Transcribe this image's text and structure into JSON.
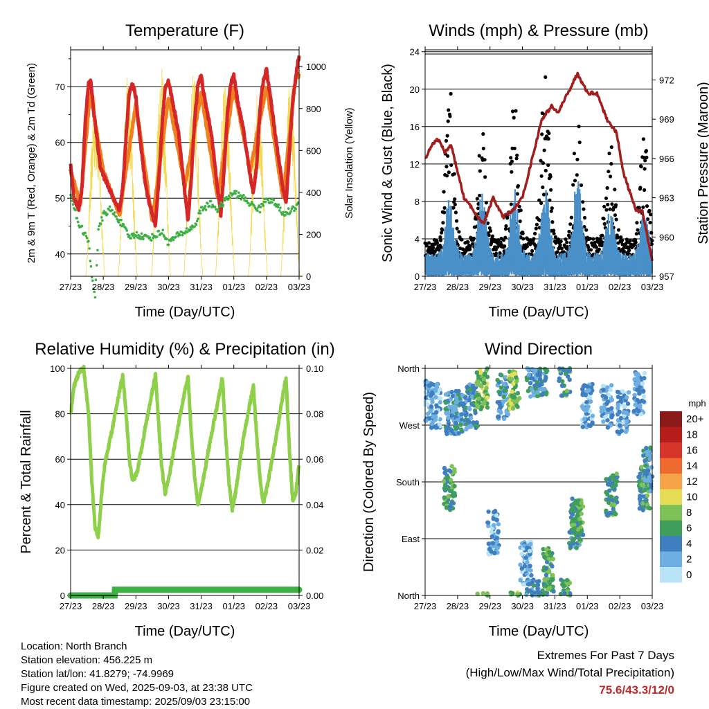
{
  "x_ticks": [
    "27/23",
    "28/23",
    "29/23",
    "30/23",
    "31/23",
    "01/23",
    "02/23",
    "03/23"
  ],
  "time_xlabel": "Time (Day/UTC)",
  "colors": {
    "temp2m": "#d62728",
    "temp9m": "#f07f1e",
    "dew": "#3cb043",
    "solar": "#f2d640",
    "gust": "#000000",
    "wind": "#4a90c8",
    "pressure": "#a01e1e",
    "rh": "#8ed04a",
    "precip": "#3cb043"
  },
  "info": {
    "location": "Location: North Branch",
    "elevation": "Station elevation: 456.225 m",
    "latlon": "Station lat/lon: 41.8279; -74.9969",
    "created": "Figure created on Wed, 2025-09-03, at 23:38 UTC",
    "recent": "Most recent data timestamp: 2025/09/03 23:15:00"
  },
  "extremes": {
    "line1": "Extremes For Past 7 Days",
    "line2": "(High/Low/Max Wind/Total Precipitation)",
    "values": "75.6/43.3/12/0"
  },
  "chart_data": [
    {
      "type": "line",
      "title": "Temperature (F)",
      "xlabel": "Time (Day/UTC)",
      "ylabel": "2m & 9m T (Red, Orange) & 2m Td (Green)",
      "y2label": "Solar Insolation (Yellow)",
      "x_unit": "days since 27/23",
      "ylim": [
        36,
        76.6
      ],
      "y_ticks": [
        40,
        50,
        60,
        70
      ],
      "y2lim": [
        0,
        1080
      ],
      "y2_ticks": [
        0,
        200,
        400,
        600,
        800,
        1000
      ],
      "series": [
        {
          "name": "2m T",
          "axis": "left",
          "x": [
            0,
            0.1,
            0.25,
            0.35,
            0.45,
            0.55,
            0.62,
            0.7,
            0.8,
            0.9,
            1.0,
            1.1,
            1.3,
            1.5,
            1.6,
            1.7,
            1.8,
            1.9,
            2.0,
            2.1,
            2.3,
            2.5,
            2.6,
            2.7,
            2.8,
            2.9,
            3.0,
            3.1,
            3.3,
            3.5,
            3.6,
            3.7,
            3.8,
            3.9,
            4.0,
            4.1,
            4.3,
            4.5,
            4.6,
            4.7,
            4.8,
            4.9,
            5.0,
            5.1,
            5.3,
            5.5,
            5.6,
            5.7,
            5.8,
            5.9,
            6.0,
            6.1,
            6.3,
            6.5,
            6.6,
            6.7,
            6.8,
            6.9,
            7.0
          ],
          "values": [
            56,
            50,
            48,
            52,
            64,
            70.5,
            71,
            66,
            61,
            56,
            54,
            53,
            50,
            48,
            52,
            61,
            69,
            70.5,
            68,
            62,
            52,
            47,
            45,
            53,
            63,
            70,
            71,
            68,
            62,
            51,
            46,
            54,
            64,
            70.5,
            72,
            68,
            62,
            52,
            47,
            55,
            65,
            70.5,
            72,
            68,
            62,
            54,
            51,
            56,
            66,
            71,
            73,
            69,
            60,
            52,
            49,
            58,
            67,
            72,
            75.6
          ]
        },
        {
          "name": "9m T",
          "axis": "left",
          "x": [
            0,
            0.3,
            0.6,
            1.0,
            1.5,
            2.0,
            2.5,
            3.0,
            3.5,
            4.0,
            4.5,
            5.0,
            5.5,
            6.0,
            6.5,
            6.9
          ],
          "values": [
            55,
            49,
            69,
            55,
            47,
            67,
            46,
            68,
            52,
            69,
            50,
            70,
            55,
            70,
            50,
            72
          ]
        },
        {
          "name": "2m Td",
          "axis": "left",
          "x": [
            0,
            0.2,
            0.4,
            0.55,
            0.65,
            0.75,
            0.85,
            1.0,
            1.2,
            1.5,
            1.8,
            2.0,
            2.3,
            2.5,
            2.8,
            3.0,
            3.2,
            3.5,
            3.8,
            4.0,
            4.3,
            4.5,
            4.8,
            5.0,
            5.3,
            5.5,
            5.8,
            6.0,
            6.3,
            6.5,
            6.8,
            7.0
          ],
          "values": [
            51,
            46,
            44,
            42,
            36,
            32.5,
            44,
            47,
            48,
            46,
            43,
            43.5,
            43,
            43,
            44,
            42,
            43,
            44,
            45,
            48,
            49,
            48,
            50,
            51,
            50,
            49,
            48,
            50,
            49,
            47,
            48,
            49
          ]
        },
        {
          "name": "Solar",
          "axis": "right",
          "peaks": [
            0.76,
            1.75,
            2.77,
            3.76,
            4.73,
            5.74,
            6.73
          ],
          "peak_values": [
            880,
            960,
            1010,
            970,
            940,
            920,
            960
          ]
        }
      ]
    },
    {
      "type": "scatter",
      "title": "Winds (mph) & Pressure (mb)",
      "xlabel": "Time (Day/UTC)",
      "ylabel": "Sonic Wind & Gust (Blue, Black)",
      "y2label": "Station Pressure (Maroon)",
      "x_unit": "days since 27/23",
      "ylim": [
        0,
        24.2
      ],
      "y_ticks": [
        0,
        4,
        8,
        12,
        16,
        20,
        24
      ],
      "y2lim": [
        957,
        974.3
      ],
      "y2_ticks": [
        957,
        960,
        963,
        966,
        969,
        972
      ],
      "series": [
        {
          "name": "Gust",
          "axis": "left",
          "peak_days": [
            0.75,
            1.75,
            2.75,
            3.7,
            4.7,
            5.7,
            6.75
          ],
          "peak_values": [
            20.5,
            17.5,
            19,
            22.5,
            18,
            15.5,
            15.5
          ]
        },
        {
          "name": "Wind",
          "axis": "left",
          "peak_days": [
            0.75,
            1.75,
            2.75,
            3.7,
            4.7,
            5.7,
            6.75
          ],
          "peak_values": [
            8.5,
            9,
            9.5,
            10,
            11,
            7.5,
            7
          ]
        },
        {
          "name": "Pressure",
          "axis": "right",
          "x": [
            0,
            0.2,
            0.4,
            0.6,
            0.8,
            1.0,
            1.2,
            1.5,
            1.8,
            2.1,
            2.4,
            2.7,
            3.0,
            3.3,
            3.6,
            3.9,
            4.1,
            4.4,
            4.7,
            5.0,
            5.3,
            5.6,
            5.9,
            6.1,
            6.3,
            6.5,
            6.7,
            6.85,
            7.0
          ],
          "values": [
            966,
            967,
            967.5,
            966.5,
            967,
            965,
            963,
            962,
            961,
            963,
            961.5,
            962,
            963,
            966,
            969,
            970,
            969.5,
            971,
            972.5,
            971,
            971,
            969,
            968,
            965,
            963.5,
            962,
            962,
            960,
            958.3
          ]
        }
      ]
    },
    {
      "type": "line",
      "title": "Relative Humidity (%) & Precipitation (in)",
      "xlabel": "Time (Day/UTC)",
      "ylabel": "Percent & Total Rainfall",
      "x_unit": "days since 27/23",
      "ylim": [
        0,
        100
      ],
      "y_ticks": [
        0,
        20,
        40,
        60,
        80,
        100
      ],
      "y2lim": [
        0,
        0.1
      ],
      "y2_ticks": [
        "0.00",
        "0.02",
        "0.04",
        "0.06",
        "0.08",
        "0.10"
      ],
      "series": [
        {
          "name": "RH",
          "axis": "left",
          "x": [
            0,
            0.1,
            0.25,
            0.4,
            0.55,
            0.65,
            0.75,
            0.85,
            0.95,
            1.05,
            1.3,
            1.5,
            1.6,
            1.7,
            1.8,
            1.9,
            2.05,
            2.3,
            2.5,
            2.6,
            2.7,
            2.8,
            2.9,
            3.05,
            3.3,
            3.5,
            3.6,
            3.7,
            3.8,
            3.9,
            4.05,
            4.3,
            4.55,
            4.65,
            4.75,
            4.85,
            4.95,
            5.05,
            5.3,
            5.5,
            5.6,
            5.7,
            5.8,
            5.9,
            6.05,
            6.3,
            6.5,
            6.6,
            6.7,
            6.8,
            6.9,
            7.0
          ],
          "values": [
            80,
            92,
            98,
            100,
            80,
            50,
            30,
            26,
            45,
            58,
            75,
            90,
            97,
            80,
            60,
            50,
            55,
            75,
            90,
            97,
            75,
            55,
            45,
            55,
            75,
            90,
            96,
            70,
            52,
            40,
            50,
            70,
            88,
            96,
            70,
            50,
            38,
            45,
            70,
            85,
            92,
            70,
            52,
            40,
            50,
            70,
            88,
            96,
            65,
            42,
            45,
            58
          ]
        },
        {
          "name": "Precip",
          "axis": "right",
          "x": [
            0,
            1.35,
            1.36,
            7.0
          ],
          "values": [
            0,
            0,
            0.0025,
            0.0025
          ]
        }
      ]
    },
    {
      "type": "scatter",
      "title": "Wind Direction",
      "xlabel": "Time (Day/UTC)",
      "ylabel": "Direction (Colored By Speed)",
      "x_unit": "days since 27/23",
      "y_labels": [
        "North",
        "East",
        "South",
        "West",
        "North"
      ],
      "ylim": [
        0,
        360
      ],
      "legend": {
        "title": "mph",
        "labels": [
          "20+",
          "18",
          "16",
          "14",
          "12",
          "10",
          "8",
          "6",
          "4",
          "2",
          "0"
        ],
        "colors": [
          "#8b1a1a",
          "#b71c1c",
          "#d7352a",
          "#ee6a2e",
          "#f7a448",
          "#e4dd55",
          "#7ec257",
          "#3e9e5a",
          "#3f7fbf",
          "#6faee0",
          "#b9e3f7"
        ]
      }
    }
  ]
}
